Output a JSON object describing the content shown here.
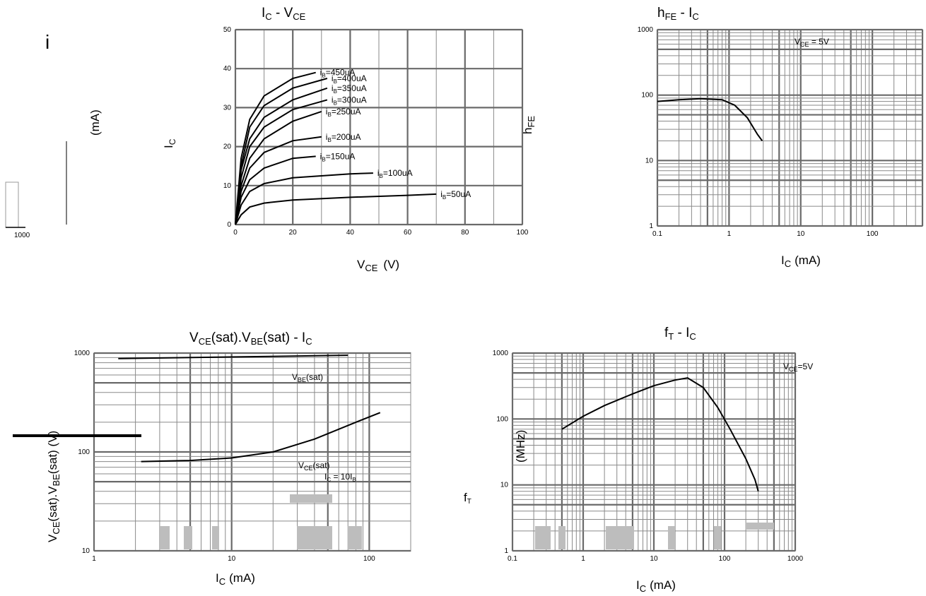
{
  "chart_data": [
    {
      "type": "line",
      "title": "IC - VCE",
      "title_main": "I",
      "title_sub": "C",
      "title_sep": " - ",
      "title_main2": "V",
      "title_sub2": "CE",
      "xlabel": "VCE (V)",
      "xlabel_main": "V",
      "xlabel_sub": "CE",
      "xlabel_unit": "(V)",
      "ylabel": "IC (mA)",
      "ylabel_main": "I",
      "ylabel_sub": "C",
      "ylabel_unit": "(mA)",
      "xlim": [
        0,
        100
      ],
      "ylim": [
        0,
        50
      ],
      "xticks": [
        "0",
        "20",
        "40",
        "60",
        "80",
        "100"
      ],
      "yticks": [
        "0",
        "10",
        "20",
        "30",
        "40",
        "50"
      ],
      "grid": true,
      "series": [
        {
          "name": "IB=450uA",
          "x": [
            0,
            2,
            5,
            10,
            20,
            28
          ],
          "y": [
            0,
            17,
            27,
            33,
            37.5,
            39
          ]
        },
        {
          "name": "IB=400uA",
          "x": [
            0,
            2,
            5,
            10,
            20,
            32
          ],
          "y": [
            0,
            15,
            25,
            30.5,
            35,
            37.5
          ]
        },
        {
          "name": "IB=350uA",
          "x": [
            0,
            2,
            5,
            10,
            20,
            32
          ],
          "y": [
            0,
            14,
            22,
            27.5,
            32,
            35
          ]
        },
        {
          "name": "IB=300uA",
          "x": [
            0,
            2,
            5,
            10,
            20,
            32
          ],
          "y": [
            0,
            12,
            20,
            25,
            29.5,
            32
          ]
        },
        {
          "name": "IB=250uA",
          "x": [
            0,
            2,
            5,
            10,
            20,
            30
          ],
          "y": [
            0,
            10,
            17,
            22,
            26.5,
            29
          ]
        },
        {
          "name": "IB=200uA",
          "x": [
            0,
            2,
            5,
            10,
            20,
            30
          ],
          "y": [
            0,
            8.5,
            14.5,
            18.5,
            21.5,
            22.5
          ]
        },
        {
          "name": "IB=150uA",
          "x": [
            0,
            2,
            5,
            10,
            20,
            28
          ],
          "y": [
            0,
            7,
            11.5,
            14.5,
            17,
            17.5
          ]
        },
        {
          "name": "IB=100uA",
          "x": [
            0,
            2,
            5,
            10,
            20,
            40,
            48
          ],
          "y": [
            0,
            5,
            8.5,
            10.5,
            12,
            13,
            13.2
          ]
        },
        {
          "name": "IB=50uA",
          "x": [
            0,
            2,
            5,
            10,
            20,
            40,
            60,
            70
          ],
          "y": [
            0,
            2.5,
            4.5,
            5.5,
            6.3,
            7,
            7.5,
            7.8
          ]
        }
      ],
      "labels": [
        {
          "main": "i",
          "sub": "B",
          "rest": "=450uA"
        },
        {
          "main": "i",
          "sub": "B",
          "rest": "=400uA"
        },
        {
          "main": "i",
          "sub": "B",
          "rest": "=350uA"
        },
        {
          "main": "i",
          "sub": "B",
          "rest": "=300uA"
        },
        {
          "main": "i",
          "sub": "B",
          "rest": "=250uA"
        },
        {
          "main": "i",
          "sub": "B",
          "rest": "=200uA"
        },
        {
          "main": "i",
          "sub": "B",
          "rest": "=150uA"
        },
        {
          "main": "i",
          "sub": "B",
          "rest": "=100uA"
        },
        {
          "main": "i",
          "sub": "B",
          "rest": "=50uA"
        }
      ]
    },
    {
      "type": "line",
      "title": "hFE - IC",
      "title_main": "h",
      "title_sub": "FE",
      "title_sep": " - ",
      "title_main2": "I",
      "title_sub2": "C",
      "xlabel": "IC (mA)",
      "xlabel_main": "I",
      "xlabel_sub": "C",
      "xlabel_unit": "(mA)",
      "ylabel": "hFE",
      "ylabel_main": "h",
      "ylabel_sub": "FE",
      "xscale": "log",
      "yscale": "log",
      "xlim": [
        0.1,
        500
      ],
      "ylim": [
        1,
        1000
      ],
      "xticks": [
        "0.1",
        "1",
        "10",
        "100"
      ],
      "yticks": [
        "1",
        "10",
        "100",
        "1000"
      ],
      "grid": true,
      "annotation": "VCE = 5V",
      "annotation_main": "V",
      "annotation_sub": "CE",
      "annotation_rest": " = 5V",
      "series": [
        {
          "name": "hFE",
          "x": [
            0.1,
            0.2,
            0.4,
            0.8,
            1.2,
            1.8,
            2.5,
            2.9
          ],
          "y": [
            80,
            85,
            88,
            85,
            70,
            45,
            25,
            20
          ]
        }
      ]
    },
    {
      "type": "line",
      "title": "VCE(sat).VBE(sat) - IC",
      "title_main": "V",
      "title_sub": "CE",
      "title_mid": "(sat).V",
      "title_sub2": "BE",
      "title_end": "(sat) - I",
      "title_sub3": "C",
      "xlabel": "IC (mA)",
      "xlabel_main": "I",
      "xlabel_sub": "C",
      "xlabel_unit": "(mA)",
      "ylabel": "VCE(sat).VBE(sat) (V)",
      "ylabel_main": "V",
      "ylabel_sub": "CE",
      "ylabel_mid": "(sat).V",
      "ylabel_sub2": "BE",
      "ylabel_end": "(sat) (V)",
      "xscale": "log",
      "yscale": "log",
      "xlim": [
        1,
        200
      ],
      "ylim": [
        10,
        1000
      ],
      "xticks": [
        "1",
        "10",
        "100"
      ],
      "yticks": [
        "10",
        "100",
        "1000"
      ],
      "grid": true,
      "series": [
        {
          "name": "VBE(sat)",
          "name_main": "V",
          "name_sub": "BE",
          "name_rest": "(sat)",
          "x": [
            1.5,
            70
          ],
          "y": [
            880,
            950
          ]
        },
        {
          "name": "VCE(sat)",
          "name_main": "V",
          "name_sub": "CE",
          "name_rest": "(sat)",
          "x": [
            2.2,
            5,
            10,
            20,
            40,
            80,
            120
          ],
          "y": [
            80,
            82,
            87,
            100,
            135,
            200,
            250
          ]
        }
      ],
      "annotation": "IC = 10IB",
      "annotation_main": "I",
      "annotation_sub": "C",
      "annotation_mid": " = 10I",
      "annotation_sub2": "B"
    },
    {
      "type": "line",
      "title": "fT - IC",
      "title_main": "f",
      "title_sub": "T",
      "title_sep": " - ",
      "title_main2": "I",
      "title_sub2": "C",
      "xlabel": "IC (mA)",
      "xlabel_main": "I",
      "xlabel_sub": "C",
      "xlabel_unit": "(mA)",
      "ylabel": "fT (MHz)",
      "ylabel_main": "f",
      "ylabel_sub": "T",
      "ylabel_unit": "(MHz)",
      "xscale": "log",
      "yscale": "log",
      "xlim": [
        0.1,
        1000
      ],
      "ylim": [
        1,
        1000
      ],
      "xticks": [
        "0.1",
        "1",
        "10",
        "100",
        "1000"
      ],
      "yticks": [
        "1",
        "10",
        "100",
        "1000"
      ],
      "grid": true,
      "annotation": "VCE=5V",
      "annotation_main": "V",
      "annotation_sub": "CE",
      "annotation_rest": "=5V",
      "series": [
        {
          "name": "fT",
          "x": [
            0.5,
            1,
            2,
            5,
            10,
            20,
            30,
            50,
            80,
            120,
            200,
            270,
            300
          ],
          "y": [
            70,
            110,
            160,
            240,
            320,
            390,
            420,
            300,
            150,
            70,
            25,
            12,
            8
          ]
        }
      ]
    }
  ],
  "stray_text": {
    "left_i": "i",
    "left_1000": "1000"
  },
  "colors": {
    "curve": "#000000",
    "grid": "#8a8a8a",
    "grid_strong": "#6a6a6a",
    "background": "#ffffff"
  }
}
